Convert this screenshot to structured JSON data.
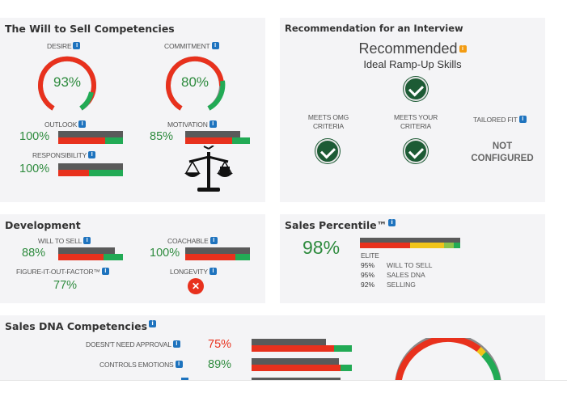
{
  "will_to_sell": {
    "title": "The Will to Sell Competencies",
    "desire": {
      "label": "DESIRE",
      "value": "93%",
      "fraction": 0.93
    },
    "commitment": {
      "label": "COMMITMENT",
      "value": "80%",
      "fraction": 0.8
    },
    "outlook": {
      "label": "OUTLOOK",
      "value": "100%"
    },
    "motivation": {
      "label": "MOTIVATION",
      "value": "85%"
    },
    "responsibility": {
      "label": "RESPONSIBILITY",
      "value": "100%"
    }
  },
  "recommendation": {
    "title": "Recommendation for an Interview",
    "status": "Recommended",
    "subtitle": "Ideal Ramp-Up Skills",
    "meets_omg": "MEETS OMG CRITERIA",
    "meets_your": "MEETS YOUR CRITERIA",
    "tailored_fit": "TAILORED FIT",
    "tailored_status_1": "NOT",
    "tailored_status_2": "CONFIGURED"
  },
  "development": {
    "title": "Development",
    "will_to_sell": {
      "label": "WILL TO SELL",
      "value": "88%"
    },
    "coachable": {
      "label": "COACHABLE",
      "value": "100%"
    },
    "fiof": {
      "label": "FIGURE-IT-OUT-FACTOR™",
      "value": "77%"
    },
    "longevity": {
      "label": "LONGEVITY"
    }
  },
  "percentile": {
    "title": "Sales Percentile™",
    "value": "98%",
    "tier": "ELITE",
    "rows": [
      {
        "pct": "95%",
        "label": "WILL TO SELL"
      },
      {
        "pct": "95%",
        "label": "SALES DNA"
      },
      {
        "pct": "92%",
        "label": "SELLING"
      }
    ]
  },
  "sales_dna": {
    "title": "Sales DNA Competencies",
    "rows": [
      {
        "label": "DOESN'T NEED APPROVAL",
        "value": "75%"
      },
      {
        "label": "CONTROLS EMOTIONS",
        "value": "89%"
      }
    ]
  },
  "colors": {
    "green": "#2e8b3e",
    "red": "#e8311d",
    "gray": "#5a5a5a",
    "bright_green": "#22aa55"
  }
}
